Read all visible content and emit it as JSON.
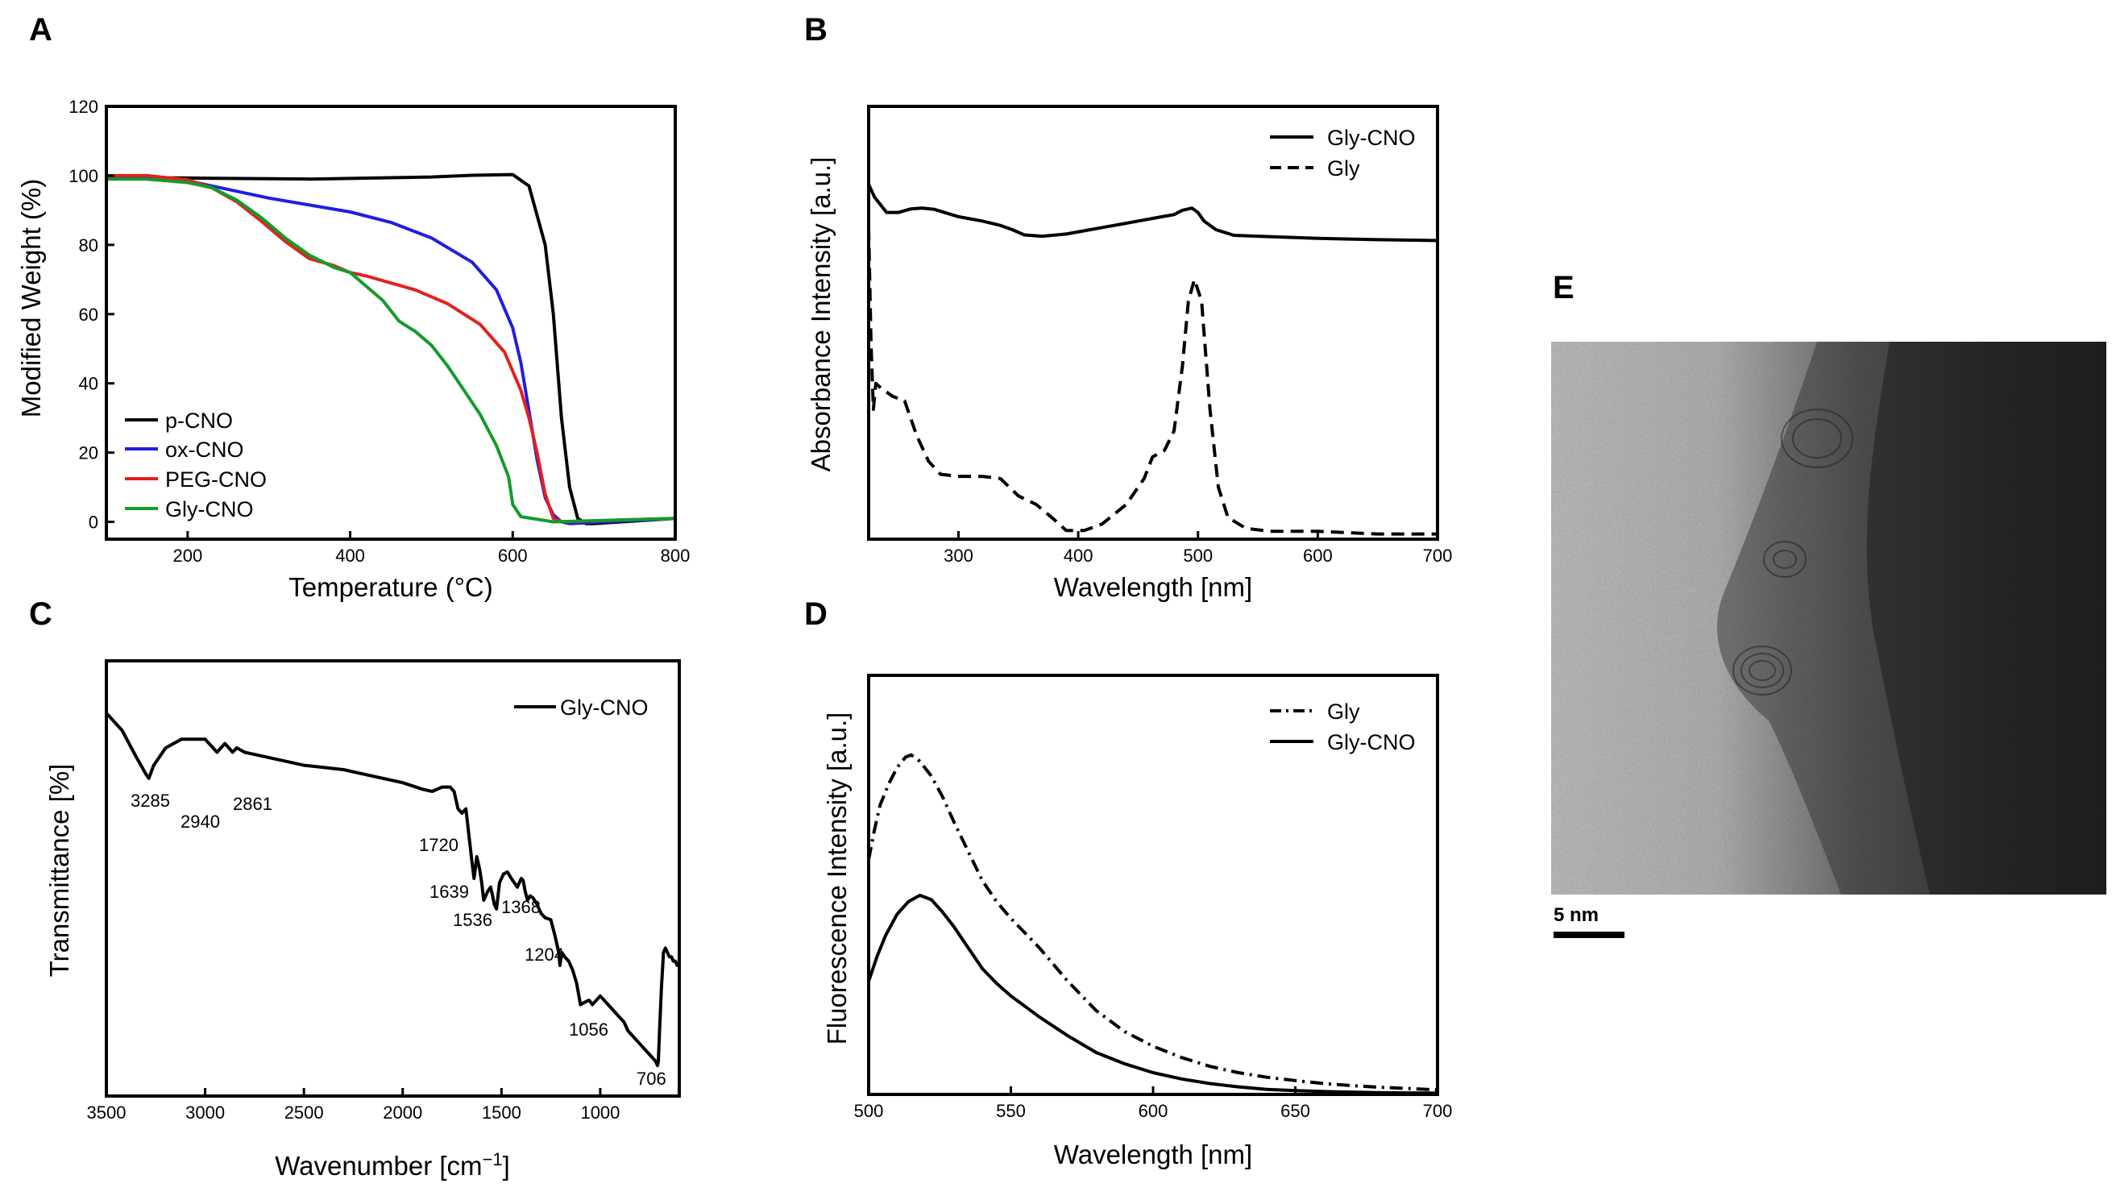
{
  "panel_letters": {
    "A": "A",
    "B": "B",
    "C": "C",
    "D": "D",
    "E": "E"
  },
  "colors": {
    "black": "#000000",
    "blue": "#1f1fe0",
    "red": "#e3211c",
    "green": "#139c2a"
  },
  "chart_data": [
    {
      "id": "A",
      "type": "line",
      "xlabel": "Temperature (°C)",
      "ylabel": "Modified Weight (%)",
      "xlim": [
        100,
        800
      ],
      "ylim": [
        -5,
        120
      ],
      "xticks": [
        "200",
        "400",
        "600",
        "800"
      ],
      "yticks": [
        "0",
        "20",
        "40",
        "60",
        "80",
        "100",
        "120"
      ],
      "legend_position": "bottom-left",
      "series": [
        {
          "name": "p-CNO",
          "color": "#000000",
          "dash": "solid",
          "x": [
            100,
            150,
            200,
            250,
            300,
            350,
            400,
            450,
            500,
            550,
            600,
            620,
            640,
            650,
            660,
            670,
            680,
            690,
            700,
            800
          ],
          "y": [
            99.5,
            99.4,
            99.3,
            99.2,
            99.1,
            99.0,
            99.2,
            99.4,
            99.6,
            100.1,
            100.3,
            97,
            80,
            60,
            30,
            10,
            1,
            -0.5,
            -0.5,
            1
          ]
        },
        {
          "name": "ox-CNO",
          "color": "#1f1fe0",
          "dash": "solid",
          "x": [
            100,
            150,
            200,
            250,
            300,
            350,
            400,
            450,
            500,
            550,
            580,
            600,
            610,
            620,
            630,
            640,
            650,
            660,
            670,
            800
          ],
          "y": [
            100,
            99.6,
            98.5,
            96,
            93.5,
            91.5,
            89.5,
            86.5,
            82,
            75,
            67,
            56,
            46,
            32,
            18,
            7,
            2,
            0,
            -0.5,
            1
          ]
        },
        {
          "name": "PEG-CNO",
          "color": "#e3211c",
          "dash": "solid",
          "x": [
            100,
            150,
            200,
            230,
            260,
            290,
            320,
            350,
            380,
            400,
            420,
            450,
            480,
            520,
            560,
            590,
            610,
            620,
            630,
            640,
            650,
            660,
            800
          ],
          "y": [
            100,
            100,
            98.8,
            96.5,
            92.5,
            87,
            81,
            76,
            74,
            72,
            71,
            69,
            67,
            63,
            57,
            49,
            38,
            30,
            20,
            8,
            1,
            0,
            1
          ]
        },
        {
          "name": "Gly-CNO",
          "color": "#139c2a",
          "dash": "solid",
          "x": [
            100,
            150,
            200,
            230,
            260,
            290,
            320,
            350,
            380,
            400,
            420,
            440,
            460,
            480,
            500,
            520,
            540,
            560,
            580,
            595,
            600,
            610,
            650,
            800
          ],
          "y": [
            99,
            99,
            98,
            96.5,
            93,
            88,
            82,
            77,
            73.5,
            72,
            68,
            64,
            58,
            55,
            51,
            45,
            38,
            31,
            22,
            13,
            5,
            1.5,
            0,
            1
          ]
        }
      ]
    },
    {
      "id": "B",
      "type": "line",
      "xlabel": "Wavelength [nm]",
      "ylabel": "Absorbance Intensity [a.u.]",
      "xlim": [
        225,
        700
      ],
      "ylim": [
        0,
        100
      ],
      "xticks": [
        "300",
        "400",
        "500",
        "600",
        "700"
      ],
      "yticks": [],
      "legend_position": "top-right",
      "series": [
        {
          "name": "Gly-CNO",
          "color": "#000000",
          "dash": "solid",
          "x": [
            225,
            230,
            240,
            250,
            260,
            270,
            280,
            300,
            320,
            335,
            345,
            355,
            370,
            390,
            410,
            430,
            450,
            470,
            480,
            487,
            495,
            500,
            505,
            515,
            530,
            550,
            600,
            650,
            700
          ],
          "y": [
            82,
            79,
            75.5,
            75.5,
            76.3,
            76.5,
            76.2,
            74.5,
            73.5,
            72.5,
            71.5,
            70.3,
            70,
            70.5,
            71.5,
            72.5,
            73.5,
            74.5,
            75,
            76,
            76.5,
            75.5,
            73.5,
            71.5,
            70.2,
            70,
            69.5,
            69.2,
            69
          ]
        },
        {
          "name": "Gly",
          "color": "#000000",
          "dash": "dashed",
          "x": [
            225,
            227,
            229,
            231,
            235,
            245,
            255,
            265,
            275,
            285,
            300,
            320,
            335,
            350,
            365,
            380,
            390,
            405,
            420,
            440,
            455,
            462,
            472,
            480,
            487,
            492,
            497,
            503,
            510,
            517,
            525,
            540,
            560,
            600,
            650,
            700
          ],
          "y": [
            72,
            45,
            30,
            36,
            35,
            33,
            32,
            24,
            18,
            15,
            14.5,
            14.5,
            14,
            10,
            8,
            4.5,
            2,
            2,
            3.5,
            8,
            14,
            19,
            20.5,
            25,
            40,
            55,
            60,
            55,
            30,
            12,
            5,
            2.5,
            1.8,
            1.8,
            1.2,
            1.2
          ]
        }
      ]
    },
    {
      "id": "C",
      "type": "line",
      "xlabel": "Wavenumber [cm",
      "xlabel_superscript": "−1",
      "xlabel_suffix": "]",
      "ylabel": "Transmittance [%]",
      "xlim": [
        3500,
        600
      ],
      "ylim": [
        0,
        100
      ],
      "xticks": [
        "3500",
        "3000",
        "2500",
        "2000",
        "1500",
        "1000"
      ],
      "yticks": [],
      "legend_position": "top-right",
      "series": [
        {
          "name": "Gly-CNO",
          "color": "#000000",
          "dash": "solid",
          "x": [
            3500,
            3420,
            3350,
            3300,
            3285,
            3260,
            3200,
            3120,
            3050,
            3000,
            2960,
            2940,
            2920,
            2900,
            2880,
            2861,
            2840,
            2800,
            2700,
            2600,
            2500,
            2400,
            2300,
            2200,
            2100,
            2000,
            1900,
            1850,
            1800,
            1760,
            1740,
            1720,
            1700,
            1680,
            1660,
            1650,
            1639,
            1625,
            1610,
            1600,
            1590,
            1570,
            1555,
            1545,
            1536,
            1525,
            1510,
            1490,
            1470,
            1450,
            1420,
            1400,
            1390,
            1380,
            1368,
            1355,
            1340,
            1320,
            1300,
            1280,
            1250,
            1230,
            1210,
            1204,
            1195,
            1180,
            1160,
            1140,
            1120,
            1100,
            1080,
            1060,
            1056,
            1040,
            1020,
            1000,
            980,
            960,
            940,
            920,
            900,
            880,
            860,
            840,
            820,
            800,
            780,
            760,
            740,
            720,
            710,
            706,
            700,
            690,
            680,
            670,
            660,
            650,
            640,
            630,
            620,
            610,
            600
          ],
          "y": [
            88,
            84,
            78,
            74,
            73,
            76,
            80,
            82,
            82,
            82,
            80,
            79,
            80,
            81,
            80,
            79,
            80,
            79,
            78,
            77,
            76,
            75.5,
            75,
            74,
            73,
            72,
            70.5,
            70,
            71,
            71,
            70,
            66,
            65,
            66,
            58,
            54,
            50,
            55,
            52,
            49,
            45,
            47,
            48,
            46,
            44,
            43,
            49,
            51,
            51.5,
            50,
            48,
            50,
            49.5,
            47,
            45,
            46,
            45.5,
            44,
            42,
            41,
            40.5,
            37,
            33,
            30,
            33,
            32,
            31,
            29,
            26,
            21,
            21.5,
            22,
            22,
            21,
            22,
            23,
            22,
            21,
            20,
            19,
            18,
            17,
            15,
            14,
            13,
            12,
            11,
            10,
            9,
            8,
            7,
            8,
            15,
            25,
            33,
            34,
            33,
            32,
            32,
            31,
            31,
            30,
            30
          ]
        }
      ],
      "annotations": [
        "3285",
        "2940",
        "2861",
        "1720",
        "1639",
        "1536",
        "1368",
        "1204",
        "1056",
        "706"
      ]
    },
    {
      "id": "D",
      "type": "line",
      "xlabel": "Wavelength [nm]",
      "ylabel": "Fluorescence Intensity [a.u.]",
      "xlim": [
        500,
        700
      ],
      "ylim": [
        0,
        100
      ],
      "xticks": [
        "500",
        "550",
        "600",
        "650",
        "700"
      ],
      "yticks": [],
      "legend_position": "top-right",
      "series": [
        {
          "name": "Gly",
          "color": "#000000",
          "dash": "dashdot",
          "x": [
            500,
            502,
            504,
            507,
            510,
            513,
            515,
            518,
            522,
            526,
            530,
            535,
            540,
            545,
            550,
            555,
            560,
            565,
            570,
            575,
            580,
            590,
            600,
            610,
            620,
            630,
            640,
            650,
            660,
            670,
            680,
            690,
            700
          ],
          "y": [
            56,
            63,
            69,
            74,
            78,
            80.5,
            81,
            79.5,
            76,
            71,
            65,
            58,
            51,
            46,
            42,
            38.5,
            35,
            31,
            27,
            23.5,
            20,
            15,
            11.5,
            8.8,
            6.7,
            5.2,
            4.1,
            3.3,
            2.6,
            2.1,
            1.7,
            1.4,
            1.1
          ]
        },
        {
          "name": "Gly-CNO",
          "color": "#000000",
          "dash": "solid",
          "x": [
            500,
            503,
            506,
            510,
            514,
            518,
            522,
            526,
            530,
            535,
            540,
            545,
            550,
            555,
            560,
            570,
            580,
            590,
            600,
            610,
            620,
            630,
            640,
            650,
            660,
            680,
            700
          ],
          "y": [
            27,
            33,
            38,
            43,
            46,
            47.5,
            46.5,
            43.5,
            40,
            35,
            30,
            26.5,
            23.5,
            21,
            18.5,
            14,
            10,
            7.3,
            5.2,
            3.7,
            2.6,
            1.8,
            1.2,
            0.9,
            0.7,
            0.4,
            0.3
          ]
        }
      ]
    }
  ],
  "panel_E": {
    "scale_bar_label": "5 nm"
  }
}
